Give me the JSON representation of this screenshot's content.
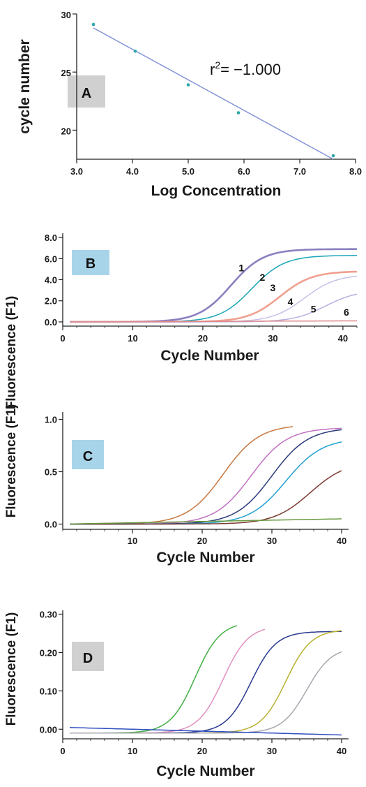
{
  "chart_data": [
    {
      "panel": "A",
      "type": "scatter",
      "xlabel": "Log Concentration",
      "ylabel": "cycle number",
      "xlim": [
        3.0,
        8.0
      ],
      "ylim": [
        17.5,
        30
      ],
      "xticks": [
        "3.0",
        "4.0",
        "5.0",
        "6.0",
        "7.0",
        "8.0"
      ],
      "yticks": [
        "20",
        "25",
        "30"
      ],
      "annotation": {
        "prefix": "r",
        "sup": "2",
        "suffix": "= −1.000"
      },
      "points": [
        {
          "x": 3.3,
          "y": 29.1
        },
        {
          "x": 4.05,
          "y": 26.8
        },
        {
          "x": 5.0,
          "y": 23.9
        },
        {
          "x": 5.9,
          "y": 21.5
        },
        {
          "x": 7.6,
          "y": 17.8
        }
      ],
      "fit_line": {
        "x": [
          3.3,
          7.6
        ],
        "y": [
          28.8,
          17.5
        ]
      },
      "colors": {
        "points": "#2aa8a8",
        "line": "#7f8fd6"
      }
    },
    {
      "panel": "B",
      "type": "line",
      "xlabel": "Cycle Number",
      "ylabel": "Fluorescence (F1)",
      "xlim": [
        0,
        42
      ],
      "ylim": [
        -0.4,
        8.4
      ],
      "xticks": [
        "0",
        "10",
        "20",
        "30",
        "40"
      ],
      "yticks": [
        "0.0",
        "2.0",
        "4.0",
        "6.0",
        "8.0"
      ],
      "series": [
        {
          "name": "1",
          "color": "#8a7fc0",
          "ct": 24.0,
          "max": 6.9,
          "label_at": [
            25.5,
            4.8
          ]
        },
        {
          "name": "2",
          "color": "#1aa5b8",
          "ct": 27.0,
          "max": 6.3,
          "label_at": [
            28.5,
            3.9
          ]
        },
        {
          "name": "3",
          "color": "#f0a090",
          "ct": 31.0,
          "max": 4.8,
          "label_at": [
            30.0,
            2.9
          ]
        },
        {
          "name": "4",
          "color": "#c8c0e8",
          "ct": 34.5,
          "max": 4.5,
          "label_at": [
            32.5,
            1.6
          ]
        },
        {
          "name": "5",
          "color": "#b8b0e0",
          "ct": 37.5,
          "max": 3.0,
          "label_at": [
            35.8,
            0.9
          ]
        },
        {
          "name": "6",
          "color": "#e08a8a",
          "ct": null,
          "max": 0.1,
          "label_at": [
            40.5,
            0.6
          ]
        }
      ]
    },
    {
      "panel": "C",
      "type": "line",
      "xlabel": "Cycle Number",
      "ylabel": "Fluorescence (F1)",
      "xlim": [
        0,
        41
      ],
      "ylim": [
        -0.05,
        1.07
      ],
      "xticks": [
        "10",
        "20",
        "30",
        "40"
      ],
      "yticks": [
        "0.0",
        "0.5",
        "1.0"
      ],
      "series": [
        {
          "color": "#c87840",
          "ct": 23.0,
          "max": 0.95,
          "xend": 33
        },
        {
          "color": "#c070c0",
          "ct": 27.0,
          "max": 0.92,
          "xend": 40
        },
        {
          "color": "#2a3a7a",
          "ct": 30.0,
          "max": 0.92,
          "xend": 40
        },
        {
          "color": "#20a0d0",
          "ct": 32.0,
          "max": 0.82,
          "xend": 40
        },
        {
          "color": "#7a3a30",
          "ct": 35.5,
          "max": 0.6,
          "xend": 40
        },
        {
          "color": "#6a9a40",
          "ct": null,
          "max": 0.05,
          "xend": 40
        }
      ]
    },
    {
      "panel": "D",
      "type": "line",
      "xlabel": "Cycle Number",
      "ylabel": "Fluorescence (F1)",
      "xlim": [
        0,
        41
      ],
      "ylim": [
        -0.025,
        0.31
      ],
      "xticks": [
        "0",
        "10",
        "20",
        "30",
        "40"
      ],
      "yticks": [
        "0.00",
        "0.10",
        "0.20",
        "0.30"
      ],
      "series": [
        {
          "color": "#40b040",
          "ct": 19.0,
          "max": 0.28,
          "xend": 25
        },
        {
          "color": "#e090c0",
          "ct": 23.0,
          "max": 0.27,
          "xend": 29
        },
        {
          "color": "#2a3a90",
          "ct": 27.0,
          "max": 0.255,
          "xend": 40
        },
        {
          "color": "#b8b030",
          "ct": 32.0,
          "max": 0.26,
          "xend": 40
        },
        {
          "color": "#a8a8b0",
          "ct": 35.0,
          "max": 0.215,
          "xend": 40
        },
        {
          "color": "#3050c0",
          "ct": null,
          "max": -0.015,
          "xend": 40
        }
      ]
    }
  ],
  "panel_badges": {
    "A": {
      "fill": "#d0d0d0"
    },
    "B": {
      "fill": "#a8d4ea"
    },
    "C": {
      "fill": "#a8d4ea"
    },
    "D": {
      "fill": "#d0d0d0"
    }
  }
}
